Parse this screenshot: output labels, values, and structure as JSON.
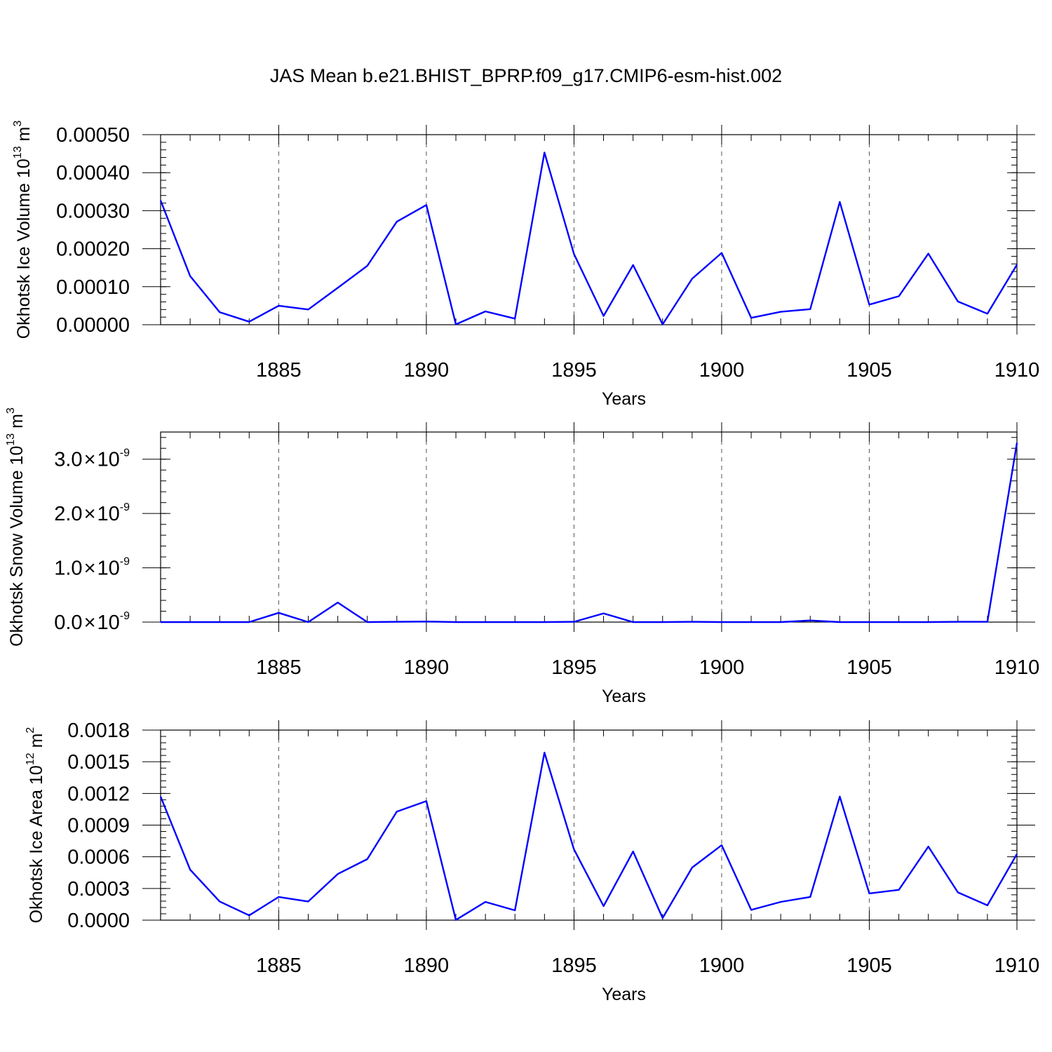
{
  "title": "JAS Mean b.e21.BHIST_BPRP.f09_g17.CMIP6-esm-hist.002",
  "colors": {
    "line": "#0000ff",
    "axis": "#000000",
    "grid": "#555555"
  },
  "chart_data": [
    {
      "type": "line",
      "id": "ice-volume",
      "ylabel": "Okhotsk Ice Volume",
      "ylabel_unit": {
        "base": "10",
        "exp": "13",
        "unit": "m",
        "unit_exp": "3"
      },
      "xlabel": "Years",
      "xlim": [
        1881,
        1910
      ],
      "ylim": [
        0,
        0.0005
      ],
      "x_major_ticks": [
        1885,
        1890,
        1895,
        1900,
        1905,
        1910
      ],
      "y_ticks": [
        0,
        0.0001,
        0.0002,
        0.0003,
        0.0004,
        0.0005
      ],
      "y_tick_labels": [
        "0.00000",
        "0.00010",
        "0.00020",
        "0.00030",
        "0.00040",
        "0.00050"
      ],
      "x": [
        1881,
        1882,
        1883,
        1884,
        1885,
        1886,
        1887,
        1888,
        1889,
        1890,
        1891,
        1892,
        1893,
        1894,
        1895,
        1896,
        1897,
        1898,
        1899,
        1900,
        1901,
        1902,
        1903,
        1904,
        1905,
        1906,
        1907,
        1908,
        1909,
        1910
      ],
      "values": [
        0.000327,
        0.000128,
        3.3e-05,
        8e-06,
        5e-05,
        4e-05,
        9.7e-05,
        0.000155,
        0.000271,
        0.000315,
        1e-06,
        3.5e-05,
        1.6e-05,
        0.000453,
        0.000186,
        2.3e-05,
        0.000157,
        1e-06,
        0.000121,
        0.000189,
        1.8e-05,
        3.4e-05,
        4.1e-05,
        0.000323,
        5.3e-05,
        7.5e-05,
        0.000187,
        6.1e-05,
        2.9e-05,
        0.000158
      ],
      "grid": "dashed vertical at major x ticks"
    },
    {
      "type": "line",
      "id": "snow-volume",
      "ylabel": "Okhotsk Snow Volume",
      "ylabel_unit": {
        "base": "10",
        "exp": "13",
        "unit": "m",
        "unit_exp": "3"
      },
      "xlabel": "Years",
      "xlim": [
        1881,
        1910
      ],
      "ylim": [
        0,
        3.5e-09
      ],
      "x_major_ticks": [
        1885,
        1890,
        1895,
        1900,
        1905,
        1910
      ],
      "y_ticks": [
        0,
        1e-09,
        2e-09,
        3e-09
      ],
      "y_tick_labels": [
        {
          "mantissa": "0.0",
          "times": "×",
          "base": "10",
          "exp": "-9"
        },
        {
          "mantissa": "1.0",
          "times": "×",
          "base": "10",
          "exp": "-9"
        },
        {
          "mantissa": "2.0",
          "times": "×",
          "base": "10",
          "exp": "-9"
        },
        {
          "mantissa": "3.0",
          "times": "×",
          "base": "10",
          "exp": "-9"
        }
      ],
      "x": [
        1881,
        1882,
        1883,
        1884,
        1885,
        1886,
        1887,
        1888,
        1889,
        1890,
        1891,
        1892,
        1893,
        1894,
        1895,
        1896,
        1897,
        1898,
        1899,
        1900,
        1901,
        1902,
        1903,
        1904,
        1905,
        1906,
        1907,
        1908,
        1909,
        1910
      ],
      "values": [
        0,
        0,
        0,
        0,
        1.7e-10,
        0,
        3.6e-10,
        0,
        5e-12,
        1e-11,
        0,
        0,
        0,
        0,
        5e-12,
        1.6e-10,
        0,
        0,
        5e-12,
        0,
        0,
        0,
        3e-11,
        0,
        0,
        0,
        0,
        5e-12,
        5e-12,
        3.3e-09
      ],
      "grid": "dashed vertical at major x ticks"
    },
    {
      "type": "line",
      "id": "ice-area",
      "ylabel": "Okhotsk Ice Area",
      "ylabel_unit": {
        "base": "10",
        "exp": "12",
        "unit": "m",
        "unit_exp": "2"
      },
      "xlabel": "Years",
      "xlim": [
        1881,
        1910
      ],
      "ylim": [
        0,
        0.0018
      ],
      "x_major_ticks": [
        1885,
        1890,
        1895,
        1900,
        1905,
        1910
      ],
      "y_ticks": [
        0,
        0.0003,
        0.0006,
        0.0009,
        0.0012,
        0.0015,
        0.0018
      ],
      "y_tick_labels": [
        "0.0000",
        "0.0003",
        "0.0006",
        "0.0009",
        "0.0012",
        "0.0015",
        "0.0018"
      ],
      "x": [
        1881,
        1882,
        1883,
        1884,
        1885,
        1886,
        1887,
        1888,
        1889,
        1890,
        1891,
        1892,
        1893,
        1894,
        1895,
        1896,
        1897,
        1898,
        1899,
        1900,
        1901,
        1902,
        1903,
        1904,
        1905,
        1906,
        1907,
        1908,
        1909,
        1910
      ],
      "values": [
        0.00117,
        0.000478,
        0.000177,
        4.5e-05,
        0.00022,
        0.000177,
        0.000437,
        0.000578,
        0.001028,
        0.001127,
        2e-06,
        0.000173,
        9.3e-05,
        0.001587,
        0.00067,
        0.000133,
        0.00065,
        2e-05,
        0.000498,
        0.00071,
        9.7e-05,
        0.000173,
        0.00022,
        0.00117,
        0.000253,
        0.000287,
        0.000697,
        0.000263,
        0.00014,
        0.000627
      ],
      "grid": "dashed vertical at major x ticks"
    }
  ]
}
